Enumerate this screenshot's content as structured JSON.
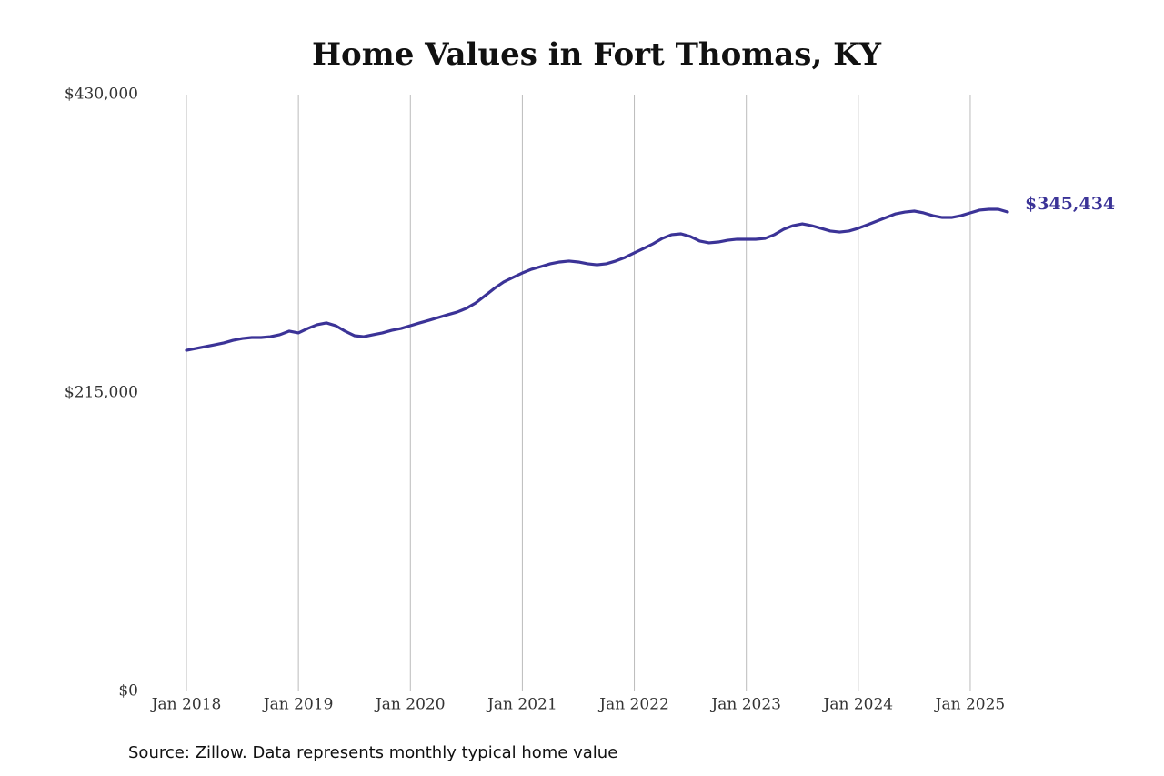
{
  "chart_data": {
    "type": "line",
    "title": "Home Values in Fort Thomas, KY",
    "source": "Source: Zillow. Data represents monthly typical home value",
    "x": [
      "2018-01",
      "2018-02",
      "2018-03",
      "2018-04",
      "2018-05",
      "2018-06",
      "2018-07",
      "2018-08",
      "2018-09",
      "2018-10",
      "2018-11",
      "2018-12",
      "2019-01",
      "2019-02",
      "2019-03",
      "2019-04",
      "2019-05",
      "2019-06",
      "2019-07",
      "2019-08",
      "2019-09",
      "2019-10",
      "2019-11",
      "2019-12",
      "2020-01",
      "2020-02",
      "2020-03",
      "2020-04",
      "2020-05",
      "2020-06",
      "2020-07",
      "2020-08",
      "2020-09",
      "2020-10",
      "2020-11",
      "2020-12",
      "2021-01",
      "2021-02",
      "2021-03",
      "2021-04",
      "2021-05",
      "2021-06",
      "2021-07",
      "2021-08",
      "2021-09",
      "2021-10",
      "2021-11",
      "2021-12",
      "2022-01",
      "2022-02",
      "2022-03",
      "2022-04",
      "2022-05",
      "2022-06",
      "2022-07",
      "2022-08",
      "2022-09",
      "2022-10",
      "2022-11",
      "2022-12",
      "2023-01",
      "2023-02",
      "2023-03",
      "2023-04",
      "2023-05",
      "2023-06",
      "2023-07",
      "2023-08",
      "2023-09",
      "2023-10",
      "2023-11",
      "2023-12",
      "2024-01",
      "2024-02",
      "2024-03",
      "2024-04",
      "2024-05",
      "2024-06",
      "2024-07",
      "2024-08",
      "2024-09",
      "2024-10",
      "2024-11",
      "2024-12",
      "2025-01",
      "2025-02",
      "2025-03",
      "2025-04",
      "2025-05"
    ],
    "series": [
      {
        "color": "#3b3397",
        "values": [
          245800,
          247100,
          248400,
          249700,
          251100,
          253000,
          254300,
          255000,
          255000,
          255600,
          257000,
          259600,
          258300,
          261500,
          264200,
          265500,
          263500,
          259600,
          256300,
          255600,
          257000,
          258300,
          260200,
          261500,
          263500,
          265500,
          267400,
          269400,
          271400,
          273300,
          276000,
          279900,
          285100,
          290400,
          295000,
          298300,
          301500,
          304200,
          306100,
          308100,
          309400,
          310100,
          309400,
          308100,
          307400,
          308100,
          310100,
          312700,
          316000,
          319200,
          322500,
          326400,
          329100,
          329700,
          327800,
          324500,
          323200,
          323800,
          325100,
          325800,
          325800,
          325800,
          326400,
          329100,
          333000,
          335600,
          336900,
          335600,
          333700,
          331700,
          331000,
          331700,
          333700,
          336300,
          338900,
          341500,
          344100,
          345400,
          346100,
          344800,
          342800,
          341500,
          341500,
          342800,
          344800,
          346800,
          347400,
          347400,
          345434
        ],
        "value_labels": [
          null,
          null,
          null,
          null,
          null,
          null,
          null,
          null,
          null,
          null,
          null,
          null,
          null,
          null,
          null,
          null,
          null,
          null,
          null,
          null,
          null,
          null,
          null,
          null,
          null,
          null,
          null,
          null,
          null,
          null,
          null,
          null,
          null,
          null,
          null,
          null,
          null,
          null,
          null,
          null,
          null,
          null,
          null,
          null,
          null,
          null,
          null,
          null,
          null,
          null,
          null,
          null,
          null,
          null,
          null,
          null,
          null,
          null,
          null,
          null,
          null,
          null,
          null,
          null,
          null,
          null,
          null,
          null,
          null,
          null,
          null,
          null,
          null,
          null,
          null,
          null,
          null,
          null,
          null,
          null,
          null,
          null,
          null,
          null,
          null,
          null,
          null,
          null,
          "$345,434"
        ]
      }
    ],
    "xlim": [
      "2018-01",
      "2025-05"
    ],
    "xticks": [
      {
        "value": "2018-01",
        "label": "Jan 2018"
      },
      {
        "value": "2019-01",
        "label": "Jan 2019"
      },
      {
        "value": "2020-01",
        "label": "Jan 2020"
      },
      {
        "value": "2021-01",
        "label": "Jan 2021"
      },
      {
        "value": "2022-01",
        "label": "Jan 2022"
      },
      {
        "value": "2023-01",
        "label": "Jan 2023"
      },
      {
        "value": "2024-01",
        "label": "Jan 2024"
      },
      {
        "value": "2025-01",
        "label": "Jan 2025"
      }
    ],
    "ylim": [
      0,
      430000
    ],
    "yticks": [
      {
        "value": 0,
        "label": "$0"
      },
      {
        "value": 215000,
        "label": "$215,000"
      },
      {
        "value": 430000,
        "label": "$430,000"
      }
    ],
    "grid": "x"
  }
}
